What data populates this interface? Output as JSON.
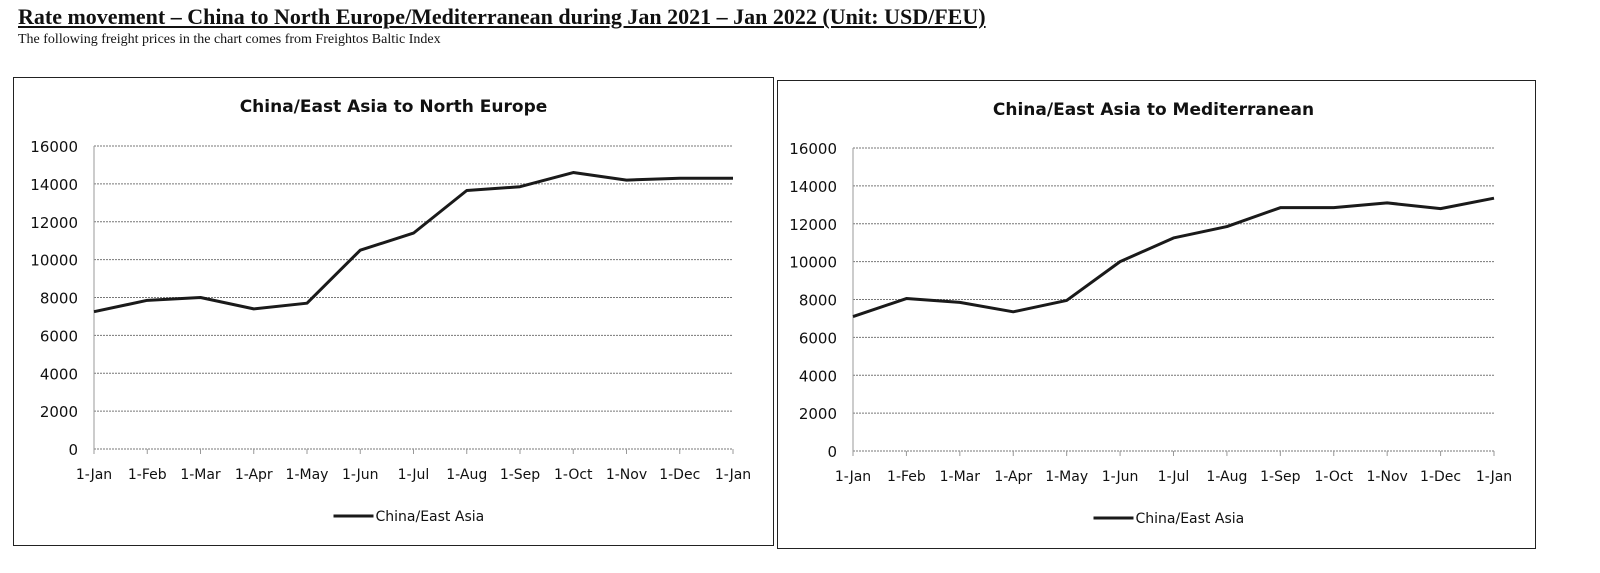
{
  "header": {
    "title": "Rate movement – China to North Europe/Mediterranean during Jan 2021 – Jan 2022 (Unit: USD/FEU)",
    "subtitle": "The following freight prices in the chart comes from Freightos Baltic Index"
  },
  "chart_data": [
    {
      "type": "line",
      "title": "China/East Asia to North Europe",
      "categories": [
        "1-Jan",
        "1-Feb",
        "1-Mar",
        "1-Apr",
        "1-May",
        "1-Jun",
        "1-Jul",
        "1-Aug",
        "1-Sep",
        "1-Oct",
        "1-Nov",
        "1-Dec",
        "1-Jan"
      ],
      "yticks": [
        0,
        2000,
        4000,
        6000,
        8000,
        10000,
        12000,
        14000,
        16000
      ],
      "ylim": [
        0,
        16000
      ],
      "grid": true,
      "legend": "bottom",
      "series": [
        {
          "name": "China/East Asia",
          "color": "#1a1a1a",
          "values": [
            7250,
            7850,
            8000,
            7400,
            7700,
            10500,
            11400,
            13650,
            13850,
            14600,
            14200,
            14300,
            14300
          ]
        }
      ]
    },
    {
      "type": "line",
      "title": "China/East Asia to Mediterranean",
      "categories": [
        "1-Jan",
        "1-Feb",
        "1-Mar",
        "1-Apr",
        "1-May",
        "1-Jun",
        "1-Jul",
        "1-Aug",
        "1-Sep",
        "1-Oct",
        "1-Nov",
        "1-Dec",
        "1-Jan"
      ],
      "yticks": [
        0,
        2000,
        4000,
        6000,
        8000,
        10000,
        12000,
        14000,
        16000
      ],
      "ylim": [
        0,
        16000
      ],
      "grid": true,
      "legend": "bottom",
      "series": [
        {
          "name": "China/East Asia",
          "color": "#1a1a1a",
          "values": [
            7100,
            8050,
            7850,
            7350,
            7950,
            10000,
            11250,
            11850,
            12850,
            12850,
            13100,
            12800,
            13350
          ]
        }
      ]
    }
  ]
}
